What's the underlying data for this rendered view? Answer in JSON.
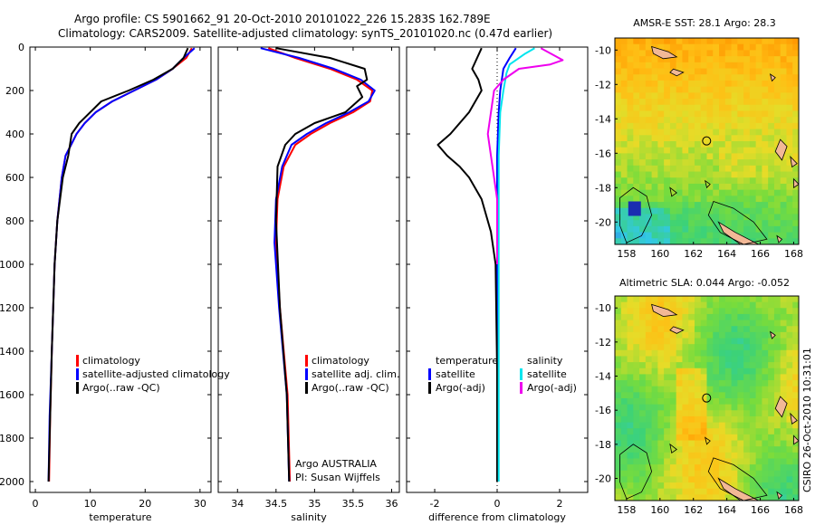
{
  "header": {
    "line1": "Argo profile: CS 5901662_91 20-Oct-2010 20101022_226 15.283S 162.789E",
    "line2": "Climatology: CARS2009. Satellite-adjusted climatology: synTS_20101020.nc (0.47d earlier)"
  },
  "colors": {
    "climatology": "#ff0000",
    "satellite": "#0000ff",
    "argo": "#000000",
    "salinity_satellite": "#00e5ee",
    "salinity_argo": "#ee00ee",
    "land": "#f2b896"
  },
  "chart_data": [
    {
      "type": "line",
      "id": "temperature",
      "xlabel": "temperature",
      "ylabel": "",
      "xlim": [
        -1,
        32
      ],
      "ylim": [
        2050,
        0
      ],
      "xticks": [
        0,
        10,
        20,
        30
      ],
      "yticks": [
        0,
        200,
        400,
        600,
        800,
        1000,
        1200,
        1400,
        1600,
        1800,
        2000
      ],
      "y_inverted": true,
      "legend": {
        "position": "lower-right",
        "entries": [
          "climatology",
          "satellite-adjusted climatology",
          "Argo(..raw -QC)"
        ]
      },
      "series": [
        {
          "name": "climatology",
          "color": "#ff0000",
          "x": [
            28.5,
            27.5,
            25.0,
            22.0,
            18.0,
            14.0,
            11.0,
            9.0,
            7.5,
            6.5,
            5.5,
            4.8,
            4.0,
            3.5,
            3.0,
            2.7,
            2.5
          ],
          "y": [
            5,
            50,
            100,
            150,
            200,
            250,
            300,
            350,
            400,
            450,
            500,
            600,
            800,
            1000,
            1400,
            1700,
            2000
          ]
        },
        {
          "name": "satellite-adjusted climatology",
          "color": "#0000ff",
          "x": [
            29.0,
            27.0,
            25.0,
            22.0,
            18.0,
            14.0,
            11.0,
            9.0,
            7.5,
            6.5,
            5.5,
            4.8,
            4.0,
            3.5,
            3.0,
            2.6,
            2.4
          ],
          "y": [
            5,
            50,
            100,
            150,
            200,
            250,
            300,
            350,
            400,
            450,
            500,
            600,
            800,
            1000,
            1400,
            1700,
            2000
          ]
        },
        {
          "name": "Argo(..raw -QC)",
          "color": "#000000",
          "x": [
            27.8,
            27.0,
            25.0,
            21.5,
            17.0,
            12.0,
            8.0,
            6.6,
            6.0,
            5.0,
            4.0,
            3.5,
            3.0,
            2.7,
            2.4
          ],
          "y": [
            5,
            50,
            100,
            150,
            200,
            250,
            350,
            400,
            500,
            600,
            800,
            1000,
            1400,
            1700,
            2000
          ]
        }
      ]
    },
    {
      "type": "line",
      "id": "salinity",
      "xlabel": "salinity",
      "ylabel": "",
      "xlim": [
        33.75,
        36.1
      ],
      "ylim": [
        2050,
        0
      ],
      "xticks": [
        34,
        34.5,
        35,
        35.5,
        36
      ],
      "yticks": [
        0,
        200,
        400,
        600,
        800,
        1000,
        1200,
        1400,
        1600,
        1800,
        2000
      ],
      "y_inverted": true,
      "legend": {
        "position": "lower-right",
        "entries": [
          "climatology",
          "satellite adj. clim.",
          "Argo(..raw -QC)"
        ]
      },
      "annotations": [
        "Argo AUSTRALIA",
        "PI: Susan Wijffels"
      ],
      "series": [
        {
          "name": "climatology",
          "color": "#ff0000",
          "x": [
            34.4,
            34.75,
            35.2,
            35.55,
            35.75,
            35.72,
            35.5,
            35.2,
            34.95,
            34.75,
            34.6,
            34.52,
            34.5,
            34.55,
            34.65,
            34.68
          ],
          "y": [
            5,
            50,
            100,
            150,
            200,
            250,
            300,
            350,
            400,
            450,
            550,
            700,
            900,
            1200,
            1600,
            2000
          ]
        },
        {
          "name": "satellite adj. clim.",
          "color": "#0000ff",
          "x": [
            34.3,
            34.8,
            35.25,
            35.6,
            35.78,
            35.7,
            35.45,
            35.15,
            34.9,
            34.7,
            34.58,
            34.5,
            34.48,
            34.54,
            34.64,
            34.67
          ],
          "y": [
            5,
            50,
            100,
            150,
            200,
            250,
            300,
            350,
            400,
            450,
            550,
            700,
            900,
            1200,
            1600,
            2000
          ]
        },
        {
          "name": "Argo(..raw -QC)",
          "color": "#000000",
          "x": [
            34.5,
            35.2,
            35.65,
            35.68,
            35.55,
            35.62,
            35.4,
            35.0,
            34.75,
            34.62,
            34.52,
            34.5,
            34.55,
            34.64,
            34.67
          ],
          "y": [
            5,
            50,
            100,
            150,
            180,
            230,
            300,
            350,
            400,
            450,
            550,
            800,
            1200,
            1600,
            2000
          ]
        }
      ]
    },
    {
      "type": "line",
      "id": "difference",
      "xlabel": "difference from climatology",
      "ylabel": "",
      "xlim": [
        -2.9,
        2.9
      ],
      "ylim": [
        2050,
        0
      ],
      "xticks": [
        -2,
        0,
        2
      ],
      "yticks": [
        0,
        200,
        400,
        600,
        800,
        1000,
        1200,
        1400,
        1600,
        1800,
        2000
      ],
      "y_inverted": true,
      "legend": {
        "position": "lower-center",
        "entries": [
          "temperature",
          "satellite",
          "Argo(-adj)",
          "salinity",
          "satellite",
          "Argo(-adj)"
        ]
      },
      "series": [
        {
          "name": "temperature satellite",
          "color": "#0000ff",
          "x": [
            0.6,
            0.4,
            0.2,
            0.1,
            0.05,
            0.0,
            0.0,
            0.0
          ],
          "y": [
            5,
            50,
            100,
            200,
            300,
            500,
            1000,
            2000
          ]
        },
        {
          "name": "temperature Argo(-adj)",
          "color": "#000000",
          "x": [
            -0.5,
            -0.8,
            -0.6,
            -0.5,
            -0.9,
            -1.5,
            -1.9,
            -1.6,
            -1.2,
            -0.9,
            -0.5,
            -0.2,
            -0.05,
            0.0,
            0.0
          ],
          "y": [
            5,
            100,
            150,
            200,
            300,
            400,
            450,
            500,
            550,
            600,
            700,
            850,
            1000,
            1500,
            2000
          ]
        },
        {
          "name": "salinity satellite",
          "color": "#00e5ee",
          "x": [
            1.2,
            0.9,
            0.4,
            0.3,
            0.2,
            0.1,
            0.05,
            0.05,
            0.05
          ],
          "y": [
            5,
            30,
            80,
            120,
            200,
            300,
            500,
            1000,
            2000
          ]
        },
        {
          "name": "salinity Argo(-adj)",
          "color": "#ee00ee",
          "x": [
            1.4,
            2.1,
            1.7,
            0.7,
            0.2,
            -0.1,
            -0.3,
            0.0,
            0.0
          ],
          "y": [
            5,
            60,
            80,
            100,
            150,
            200,
            400,
            700,
            1000
          ]
        }
      ]
    },
    {
      "type": "heatmap",
      "id": "sst_map",
      "title": "AMSR-E SST: 28.1 Argo: 28.3",
      "xticks": [
        158,
        160,
        162,
        164,
        166,
        168
      ],
      "yticks": [
        -10,
        -12,
        -14,
        -16,
        -18,
        -20
      ],
      "xlim": [
        157.3,
        168.3
      ],
      "ylim": [
        -21.3,
        -9.3
      ],
      "marker": {
        "lon": 162.789,
        "lat": -15.283
      }
    },
    {
      "type": "heatmap",
      "id": "sla_map",
      "title": "Altimetric SLA: 0.044 Argo: -0.052",
      "xticks": [
        158,
        160,
        162,
        164,
        166,
        168
      ],
      "yticks": [
        -10,
        -12,
        -14,
        -16,
        -18,
        -20
      ],
      "xlim": [
        157.3,
        168.3
      ],
      "ylim": [
        -21.3,
        -9.3
      ],
      "marker": {
        "lon": 162.789,
        "lat": -15.283
      }
    }
  ],
  "side_label": "CSIRO 26-Oct-2010 10:31:01"
}
